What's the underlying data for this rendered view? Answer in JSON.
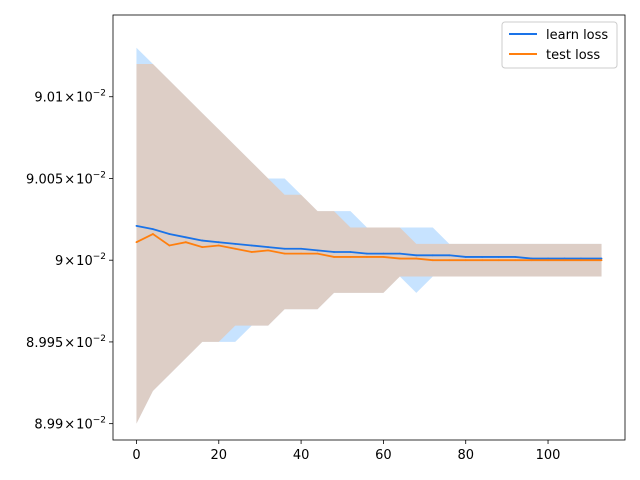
{
  "chart_data": {
    "type": "line",
    "xlim": [
      -5.7,
      118.7
    ],
    "ylim": [
      0.08989,
      0.09015
    ],
    "x_ticks": [
      {
        "value": 0,
        "label": "0"
      },
      {
        "value": 20,
        "label": "20"
      },
      {
        "value": 40,
        "label": "40"
      },
      {
        "value": 60,
        "label": "60"
      },
      {
        "value": 80,
        "label": "80"
      },
      {
        "value": 100,
        "label": "100"
      }
    ],
    "y_ticks": [
      {
        "value": 0.0899,
        "mantissa": "8.99",
        "times": "×",
        "base": "10",
        "exp": "−2"
      },
      {
        "value": 0.08995,
        "mantissa": "8.995",
        "times": "×",
        "base": "10",
        "exp": "−2"
      },
      {
        "value": 0.09,
        "mantissa": "9",
        "times": "×",
        "base": "10",
        "exp": "−2"
      },
      {
        "value": 0.09005,
        "mantissa": "9.005",
        "times": "×",
        "base": "10",
        "exp": "−2"
      },
      {
        "value": 0.0901,
        "mantissa": "9.01",
        "times": "×",
        "base": "10",
        "exp": "−2"
      }
    ],
    "legend_position": "top-right",
    "grid": false,
    "x": [
      0,
      4,
      8,
      12,
      16,
      20,
      24,
      28,
      32,
      36,
      40,
      44,
      48,
      52,
      56,
      60,
      64,
      68,
      72,
      76,
      80,
      84,
      88,
      92,
      96,
      100,
      104,
      108,
      113
    ],
    "series": [
      {
        "name": "learn loss",
        "color": "#1f77b4",
        "line_color": "#1a73e8",
        "band_color": "#74b9ff",
        "values": [
          0.090021,
          0.090019,
          0.090016,
          0.090014,
          0.090012,
          0.090011,
          0.09001,
          0.090009,
          0.090008,
          0.090007,
          0.090007,
          0.090006,
          0.090005,
          0.090005,
          0.090004,
          0.090004,
          0.090004,
          0.090003,
          0.090003,
          0.090003,
          0.090002,
          0.090002,
          0.090002,
          0.090002,
          0.090001,
          0.090001,
          0.090001,
          0.090001,
          0.090001
        ],
        "upper": [
          0.09013,
          0.09012,
          0.09011,
          0.0901,
          0.09009,
          0.09008,
          0.09007,
          0.09006,
          0.09005,
          0.09005,
          0.09004,
          0.09003,
          0.09003,
          0.09003,
          0.09002,
          0.09002,
          0.09002,
          0.09002,
          0.09002,
          0.09001,
          0.09001,
          0.09001,
          0.09001,
          0.09001,
          0.09001,
          0.09001,
          0.09001,
          0.09001,
          0.09001
        ],
        "lower": [
          0.0899,
          0.08992,
          0.08993,
          0.08994,
          0.08995,
          0.08995,
          0.08995,
          0.08996,
          0.08996,
          0.08997,
          0.08997,
          0.08997,
          0.08998,
          0.08998,
          0.08998,
          0.08998,
          0.08999,
          0.08998,
          0.08999,
          0.08999,
          0.08999,
          0.08999,
          0.08999,
          0.08999,
          0.08999,
          0.08999,
          0.08999,
          0.08999,
          0.08999
        ]
      },
      {
        "name": "test loss",
        "color": "#ff7f0e",
        "line_color": "#ff7f0e",
        "band_color": "#ffb070",
        "values": [
          0.090011,
          0.090016,
          0.090009,
          0.090011,
          0.090008,
          0.090009,
          0.090007,
          0.090005,
          0.090006,
          0.090004,
          0.090004,
          0.090004,
          0.090002,
          0.090002,
          0.090002,
          0.090002,
          0.090001,
          0.090001,
          0.09,
          0.09,
          0.09,
          0.09,
          0.09,
          0.09,
          0.09,
          0.09,
          0.09,
          0.09,
          0.09
        ],
        "upper": [
          0.09012,
          0.09012,
          0.09011,
          0.0901,
          0.09009,
          0.09008,
          0.09007,
          0.09006,
          0.09005,
          0.09004,
          0.09004,
          0.09003,
          0.09003,
          0.09002,
          0.09002,
          0.09002,
          0.09002,
          0.09001,
          0.09001,
          0.09001,
          0.09001,
          0.09001,
          0.09001,
          0.09001,
          0.09001,
          0.09001,
          0.09001,
          0.09001,
          0.09001
        ],
        "lower": [
          0.0899,
          0.08992,
          0.08993,
          0.08994,
          0.08995,
          0.08995,
          0.08996,
          0.08996,
          0.08996,
          0.08997,
          0.08997,
          0.08997,
          0.08998,
          0.08998,
          0.08998,
          0.08998,
          0.08999,
          0.08999,
          0.08999,
          0.08999,
          0.08999,
          0.08999,
          0.08999,
          0.08999,
          0.08999,
          0.08999,
          0.08999,
          0.08999,
          0.08999
        ]
      }
    ]
  }
}
